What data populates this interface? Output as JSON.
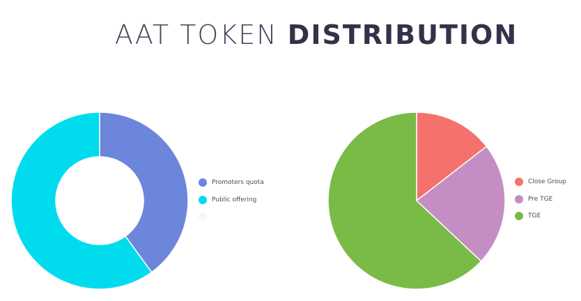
{
  "title": {
    "light": "AAT TOKEN",
    "bold": "DISTRIBUTION"
  },
  "chart_data": [
    {
      "type": "pie",
      "variant": "donut",
      "title": "",
      "legend_placement": "right",
      "series": [
        {
          "name": "Promoters quota",
          "value": 40,
          "color": "#6c86dc"
        },
        {
          "name": "Public offering",
          "value": 60,
          "color": "#00dcee"
        },
        {
          "name": "",
          "value": 0,
          "color": "#f7f7f7"
        }
      ]
    },
    {
      "type": "pie",
      "title": "",
      "legend_placement": "right",
      "series": [
        {
          "name": "Close Group",
          "value": 14.5,
          "color": "#f5716c"
        },
        {
          "name": "Pre TGE",
          "value": 22.5,
          "color": "#c48ec4"
        },
        {
          "name": "TGE",
          "value": 63,
          "color": "#7aba46"
        }
      ]
    }
  ]
}
